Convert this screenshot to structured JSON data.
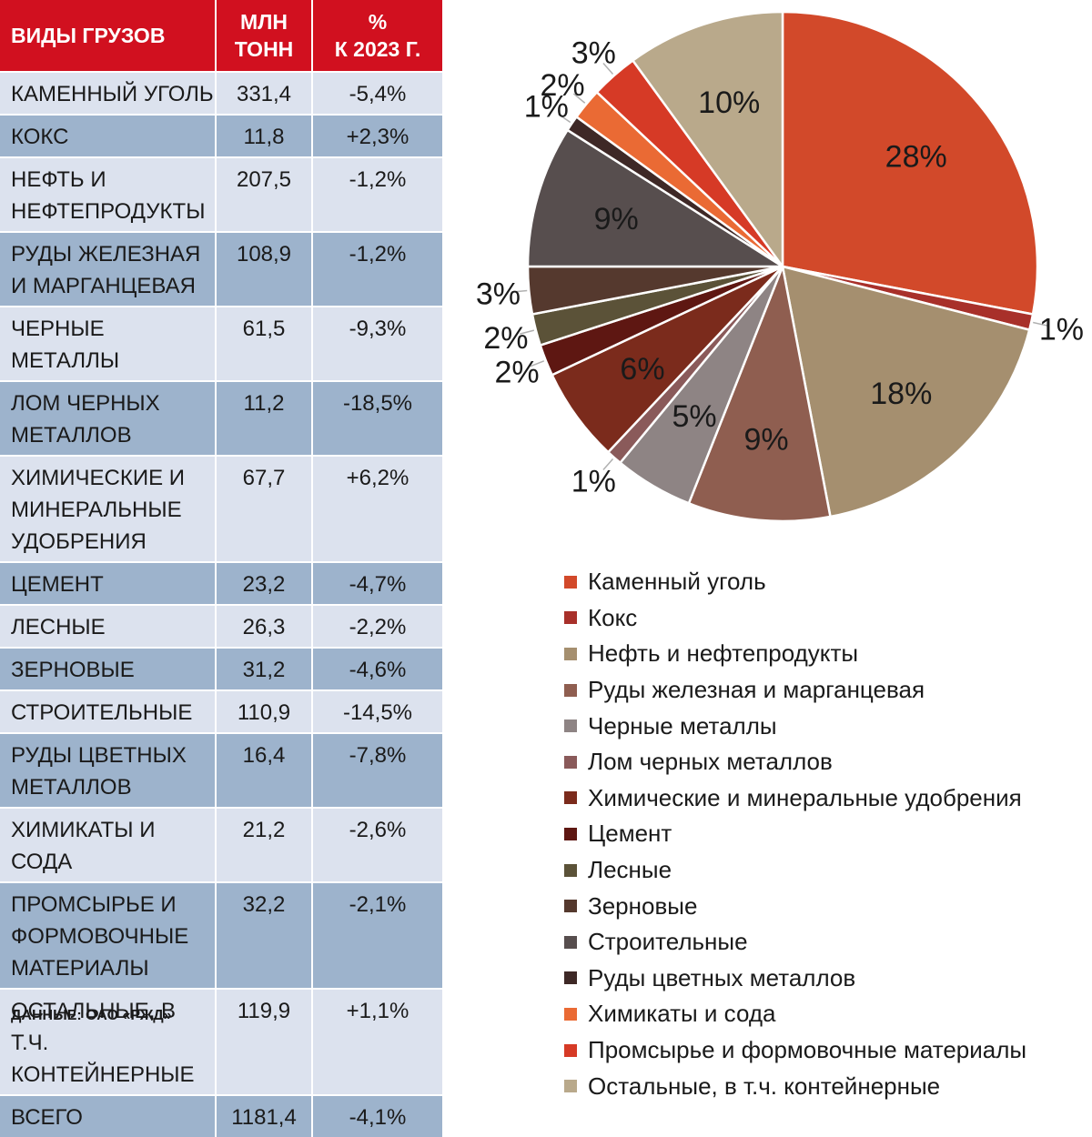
{
  "table": {
    "headers": [
      "ВИДЫ ГРУЗОВ",
      "МЛН ТОНН",
      "% К 2023 Г."
    ],
    "header_lines": [
      [
        "ВИДЫ ГРУЗОВ"
      ],
      [
        "МЛН",
        "ТОНН"
      ],
      [
        "%",
        "К 2023 Г."
      ]
    ],
    "rows": [
      {
        "name": "Каменный уголь",
        "value": "331,4",
        "change": "-5,4%"
      },
      {
        "name": "Кокс",
        "value": "11,8",
        "change": "+2,3%"
      },
      {
        "name": "Нефть и нефтепродукты",
        "value": "207,5",
        "change": "-1,2%"
      },
      {
        "name": "Руды железная и марганцевая",
        "value": "108,9",
        "change": "-1,2%"
      },
      {
        "name": "Черные металлы",
        "value": "61,5",
        "change": "-9,3%"
      },
      {
        "name": "Лом черных металлов",
        "value": "11,2",
        "change": "-18,5%"
      },
      {
        "name": "Химические и минеральные удобрения",
        "value": "67,7",
        "change": "+6,2%"
      },
      {
        "name": "Цемент",
        "value": "23,2",
        "change": "-4,7%"
      },
      {
        "name": "Лесные",
        "value": "26,3",
        "change": "-2,2%"
      },
      {
        "name": "Зерновые",
        "value": "31,2",
        "change": "-4,6%"
      },
      {
        "name": "Строительные",
        "value": "110,9",
        "change": "-14,5%"
      },
      {
        "name": "Руды цветных металлов",
        "value": "16,4",
        "change": "-7,8%"
      },
      {
        "name": "Химикаты и сода",
        "value": "21,2",
        "change": "-2,6%"
      },
      {
        "name": "Промсырье и формовочные материалы",
        "value": "32,2",
        "change": "-2,1%"
      },
      {
        "name": "Остальные, в т.ч. контейнерные",
        "value": "119,9",
        "change": "+1,1%"
      },
      {
        "name": "Всего",
        "value": "1181,4",
        "change": "-4,1%"
      }
    ]
  },
  "source": "ДАННЫЕ: ОАО «РЖД»",
  "colors": {
    "header": "#d1101f",
    "row_light": "#dce2ee",
    "row_dark": "#9db3cc"
  },
  "chart_data": {
    "type": "pie",
    "title": "",
    "start": "12 o'clock, clockwise",
    "legend_position": "bottom",
    "slices": [
      {
        "label": "Каменный уголь",
        "value": 28,
        "text": "28%",
        "color": "#d2492a"
      },
      {
        "label": "Кокс",
        "value": 1,
        "text": "1%",
        "color": "#a8302a"
      },
      {
        "label": "Нефть и нефтепродукты",
        "value": 18,
        "text": "18%",
        "color": "#a58f6f"
      },
      {
        "label": "Руды железная и марганцевая",
        "value": 9,
        "text": "9%",
        "color": "#8f5e50"
      },
      {
        "label": "Черные металлы",
        "value": 5,
        "text": "5%",
        "color": "#8e8484"
      },
      {
        "label": "Лом черных металлов",
        "value": 1,
        "text": "1%",
        "color": "#8a5a5a"
      },
      {
        "label": "Химические и минеральные удобрения",
        "value": 6,
        "text": "6%",
        "color": "#7b2b1c"
      },
      {
        "label": "Цемент",
        "value": 2,
        "text": "2%",
        "color": "#5e1712"
      },
      {
        "label": "Лесные",
        "value": 2,
        "text": "2%",
        "color": "#5b5238"
      },
      {
        "label": "Зерновые",
        "value": 3,
        "text": "3%",
        "color": "#55392e"
      },
      {
        "label": "Строительные",
        "value": 9,
        "text": "9%",
        "color": "#574e4e"
      },
      {
        "label": "Руды цветных металлов",
        "value": 1,
        "text": "1%",
        "color": "#3e2826"
      },
      {
        "label": "Химикаты и сода",
        "value": 2,
        "text": "2%",
        "color": "#ea6a34"
      },
      {
        "label": "Промсырье и формовочные материалы",
        "value": 3,
        "text": "3%",
        "color": "#d63a26"
      },
      {
        "label": "Остальные, в т.ч. контейнерные",
        "value": 10,
        "text": "10%",
        "color": "#b9a98b"
      }
    ]
  }
}
